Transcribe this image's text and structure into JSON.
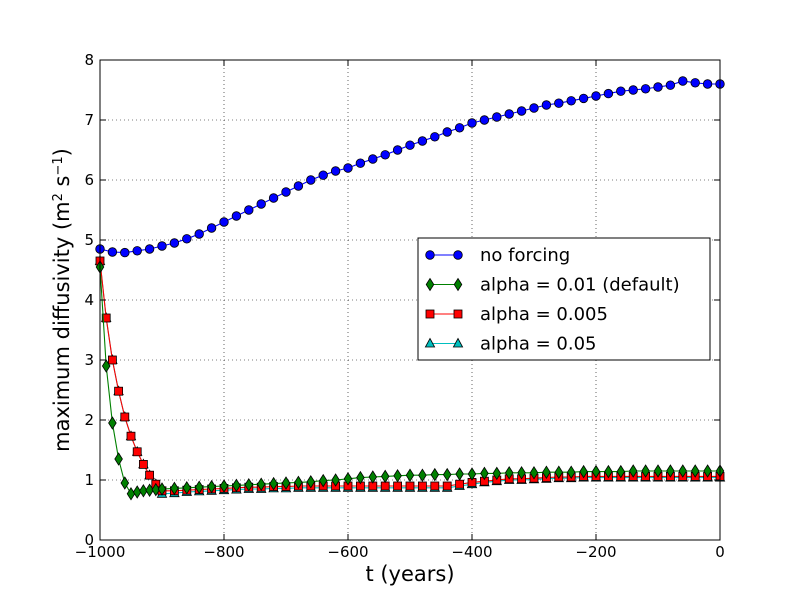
{
  "chart_data": {
    "type": "line",
    "xlabel": "t (years)",
    "ylabel": {
      "base": "maximum diffusivity (m",
      "sup1": "2",
      "mid": " s",
      "sup2": "−1",
      "end": ")"
    },
    "xlim": [
      -1000,
      0
    ],
    "ylim": [
      0,
      8
    ],
    "xticks": [
      -1000,
      -800,
      -600,
      -400,
      -200,
      0
    ],
    "xtick_labels": [
      "−1000",
      "−800",
      "−600",
      "−400",
      "−200",
      "0"
    ],
    "yticks": [
      0,
      1,
      2,
      3,
      4,
      5,
      6,
      7,
      8
    ],
    "ytick_labels": [
      "0",
      "1",
      "2",
      "3",
      "4",
      "5",
      "6",
      "7",
      "8"
    ],
    "grid": true,
    "legend_position": "center-right",
    "series": [
      {
        "name": "no forcing",
        "color": "#0000ff",
        "marker": "circle",
        "x": [
          -1000,
          -980,
          -960,
          -940,
          -920,
          -900,
          -880,
          -860,
          -840,
          -820,
          -800,
          -780,
          -760,
          -740,
          -720,
          -700,
          -680,
          -660,
          -640,
          -620,
          -600,
          -580,
          -560,
          -540,
          -520,
          -500,
          -480,
          -460,
          -440,
          -420,
          -400,
          -380,
          -360,
          -340,
          -320,
          -300,
          -280,
          -260,
          -240,
          -220,
          -200,
          -180,
          -160,
          -140,
          -120,
          -100,
          -80,
          -60,
          -40,
          -20,
          0
        ],
        "y": [
          4.85,
          4.8,
          4.79,
          4.82,
          4.85,
          4.9,
          4.95,
          5.02,
          5.1,
          5.2,
          5.3,
          5.4,
          5.5,
          5.6,
          5.7,
          5.8,
          5.9,
          6.0,
          6.08,
          6.15,
          6.2,
          6.28,
          6.35,
          6.42,
          6.5,
          6.58,
          6.65,
          6.72,
          6.8,
          6.87,
          6.95,
          7.0,
          7.05,
          7.1,
          7.15,
          7.2,
          7.25,
          7.28,
          7.32,
          7.36,
          7.4,
          7.44,
          7.48,
          7.5,
          7.52,
          7.55,
          7.58,
          7.65,
          7.62,
          7.6,
          7.6
        ]
      },
      {
        "name": "alpha = 0.01 (default)",
        "color": "#008000",
        "marker": "diamond",
        "x": [
          -1000,
          -990,
          -980,
          -970,
          -960,
          -950,
          -940,
          -930,
          -920,
          -910,
          -900,
          -880,
          -860,
          -840,
          -820,
          -800,
          -780,
          -760,
          -740,
          -720,
          -700,
          -680,
          -660,
          -640,
          -620,
          -600,
          -580,
          -560,
          -540,
          -520,
          -500,
          -480,
          -460,
          -440,
          -420,
          -400,
          -380,
          -360,
          -340,
          -320,
          -300,
          -280,
          -260,
          -240,
          -220,
          -200,
          -180,
          -160,
          -140,
          -120,
          -100,
          -80,
          -60,
          -40,
          -20,
          0
        ],
        "y": [
          4.55,
          2.9,
          1.95,
          1.35,
          0.95,
          0.77,
          0.8,
          0.82,
          0.83,
          0.84,
          0.85,
          0.86,
          0.87,
          0.88,
          0.89,
          0.9,
          0.91,
          0.92,
          0.93,
          0.94,
          0.95,
          0.96,
          0.97,
          0.99,
          1.0,
          1.02,
          1.04,
          1.05,
          1.06,
          1.07,
          1.08,
          1.08,
          1.09,
          1.09,
          1.1,
          1.1,
          1.11,
          1.11,
          1.12,
          1.12,
          1.12,
          1.13,
          1.13,
          1.13,
          1.14,
          1.14,
          1.14,
          1.14,
          1.15,
          1.15,
          1.15,
          1.15,
          1.15,
          1.15,
          1.15,
          1.15
        ]
      },
      {
        "name": "alpha = 0.005",
        "color": "#ff0000",
        "marker": "square",
        "x": [
          -1000,
          -990,
          -980,
          -970,
          -960,
          -950,
          -940,
          -930,
          -920,
          -910,
          -900,
          -880,
          -860,
          -840,
          -820,
          -800,
          -780,
          -760,
          -740,
          -720,
          -700,
          -680,
          -660,
          -640,
          -620,
          -600,
          -580,
          -560,
          -540,
          -520,
          -500,
          -480,
          -460,
          -440,
          -420,
          -400,
          -380,
          -360,
          -340,
          -320,
          -300,
          -280,
          -260,
          -240,
          -220,
          -200,
          -180,
          -160,
          -140,
          -120,
          -100,
          -80,
          -60,
          -40,
          -20,
          0
        ],
        "y": [
          4.65,
          3.7,
          3.0,
          2.48,
          2.05,
          1.73,
          1.47,
          1.26,
          1.08,
          0.93,
          0.82,
          0.82,
          0.83,
          0.84,
          0.85,
          0.86,
          0.87,
          0.88,
          0.88,
          0.89,
          0.89,
          0.9,
          0.9,
          0.9,
          0.9,
          0.9,
          0.9,
          0.9,
          0.9,
          0.9,
          0.9,
          0.9,
          0.9,
          0.9,
          0.93,
          0.96,
          0.98,
          1.0,
          1.02,
          1.02,
          1.03,
          1.04,
          1.05,
          1.05,
          1.06,
          1.06,
          1.06,
          1.06,
          1.06,
          1.06,
          1.06,
          1.06,
          1.06,
          1.06,
          1.06,
          1.06
        ]
      },
      {
        "name": "alpha = 0.05",
        "color": "#00bfbf",
        "marker": "triangle",
        "x": [
          -1000,
          -990,
          -980,
          -970,
          -960,
          -950,
          -940,
          -930,
          -920,
          -910,
          -900,
          -880,
          -860,
          -840,
          -820,
          -800,
          -780,
          -760,
          -740,
          -720,
          -700,
          -680,
          -660,
          -640,
          -620,
          -600,
          -580,
          -560,
          -540,
          -520,
          -500,
          -480,
          -460,
          -440,
          -420,
          -400,
          -380,
          -360,
          -340,
          -320,
          -300,
          -280,
          -260,
          -240,
          -220,
          -200,
          -180,
          -160,
          -140,
          -120,
          -100,
          -80,
          -60,
          -40,
          -20,
          0
        ],
        "y": [
          4.65,
          3.7,
          3.0,
          2.48,
          2.05,
          1.73,
          1.47,
          1.26,
          1.08,
          0.93,
          0.77,
          0.78,
          0.8,
          0.81,
          0.82,
          0.83,
          0.84,
          0.85,
          0.85,
          0.86,
          0.86,
          0.87,
          0.87,
          0.87,
          0.87,
          0.87,
          0.87,
          0.87,
          0.87,
          0.87,
          0.87,
          0.87,
          0.87,
          0.87,
          0.9,
          0.93,
          0.96,
          0.98,
          1.0,
          1.0,
          1.01,
          1.02,
          1.03,
          1.03,
          1.04,
          1.04,
          1.04,
          1.04,
          1.04,
          1.04,
          1.04,
          1.04,
          1.04,
          1.04,
          1.04,
          1.04
        ]
      }
    ]
  }
}
